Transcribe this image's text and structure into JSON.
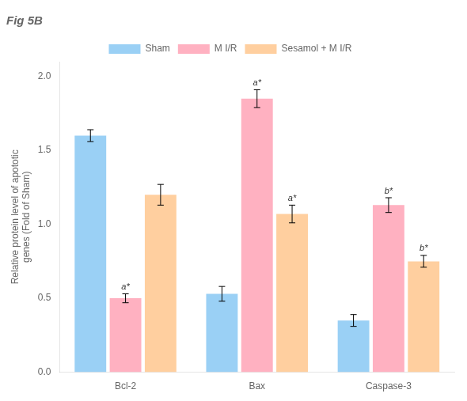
{
  "chart_data": {
    "type": "bar",
    "title": "Fig 5B",
    "ylabel": "Relative protein level of apototic\ngenes (Fold of Sham)",
    "categories": [
      "Bcl-2",
      "Bax",
      "Caspase-3"
    ],
    "series": [
      {
        "name": "Sham",
        "values": [
          1.6,
          0.53,
          0.35
        ],
        "errors": [
          0.04,
          0.05,
          0.04
        ]
      },
      {
        "name": "M I/R",
        "values": [
          0.5,
          1.85,
          1.13
        ],
        "errors": [
          0.03,
          0.06,
          0.05
        ],
        "annotations": [
          "a*",
          "a*",
          "b*"
        ]
      },
      {
        "name": "Sesamol + M I/R",
        "values": [
          1.2,
          1.07,
          0.75
        ],
        "errors": [
          0.07,
          0.06,
          0.04
        ],
        "annotations": [
          null,
          "a*",
          "b*"
        ]
      }
    ],
    "ylim": [
      0,
      2.1
    ],
    "yticks": [
      {
        "value": 0,
        "label": "0.0"
      },
      0.5,
      {
        "value": 1,
        "label": "1.0"
      },
      1.5,
      {
        "value": 2,
        "label": "2.0"
      }
    ],
    "grid": false,
    "legend": "top"
  }
}
